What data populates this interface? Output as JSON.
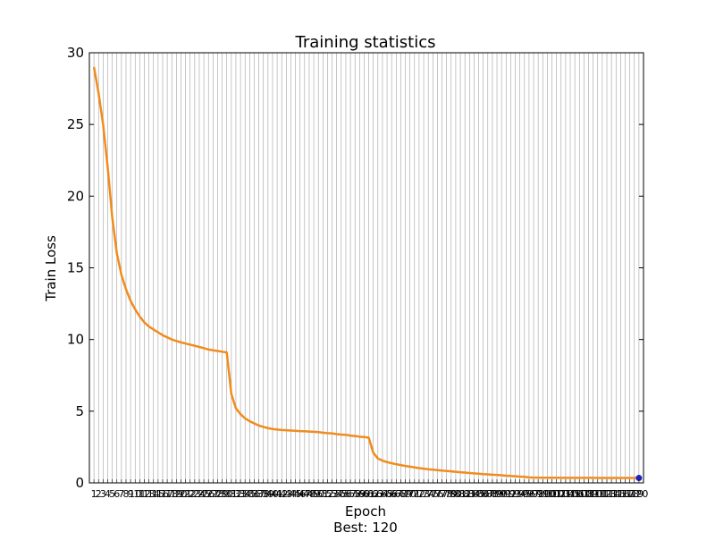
{
  "chart_data": {
    "type": "line",
    "title": "Training statistics",
    "xlabel": "Epoch",
    "xlabel_note": "Best: 120",
    "ylabel": "Train Loss",
    "ylim": [
      0,
      30
    ],
    "xlim": [
      0,
      121
    ],
    "yticks": [
      0,
      5,
      10,
      15,
      20,
      25,
      30
    ],
    "grid": "vertical lines at every epoch",
    "colors": {
      "line": "#f08c1e",
      "grid": "#a0a0a0",
      "best_marker": "#1f1fbf"
    },
    "series": [
      {
        "x": [
          1,
          2,
          3,
          4,
          5,
          6,
          7,
          8,
          9,
          10,
          11,
          12,
          13,
          14,
          15,
          16,
          17,
          18,
          19,
          20,
          21,
          22,
          23,
          24,
          25,
          26,
          27,
          28,
          29,
          30,
          31,
          32,
          33,
          34,
          35,
          36,
          37,
          38,
          39,
          40,
          41,
          42,
          43,
          44,
          45,
          46,
          47,
          48,
          49,
          50,
          51,
          52,
          53,
          54,
          55,
          56,
          57,
          58,
          59,
          60,
          61,
          62,
          63,
          64,
          65,
          66,
          67,
          68,
          69,
          70,
          71,
          72,
          73,
          74,
          75,
          76,
          77,
          78,
          79,
          80,
          81,
          82,
          83,
          84,
          85,
          86,
          87,
          88,
          89,
          90,
          91,
          92,
          93,
          94,
          95,
          96,
          97,
          98,
          99,
          100,
          101,
          102,
          103,
          104,
          105,
          106,
          107,
          108,
          109,
          110,
          111,
          112,
          113,
          114,
          115,
          116,
          117,
          118,
          119,
          120
        ],
        "values": [
          29.0,
          27.2,
          25.0,
          22.0,
          18.5,
          16.0,
          14.5,
          13.5,
          12.7,
          12.1,
          11.6,
          11.2,
          10.9,
          10.7,
          10.5,
          10.3,
          10.15,
          10.0,
          9.9,
          9.8,
          9.72,
          9.64,
          9.56,
          9.48,
          9.4,
          9.3,
          9.25,
          9.2,
          9.15,
          9.1,
          6.2,
          5.2,
          4.8,
          4.5,
          4.3,
          4.15,
          4.0,
          3.9,
          3.82,
          3.76,
          3.72,
          3.69,
          3.67,
          3.65,
          3.63,
          3.61,
          3.6,
          3.58,
          3.56,
          3.54,
          3.5,
          3.47,
          3.45,
          3.4,
          3.37,
          3.35,
          3.3,
          3.27,
          3.22,
          3.2,
          3.15,
          2.1,
          1.7,
          1.55,
          1.45,
          1.37,
          1.3,
          1.24,
          1.18,
          1.13,
          1.08,
          1.03,
          0.99,
          0.95,
          0.92,
          0.89,
          0.86,
          0.83,
          0.8,
          0.77,
          0.74,
          0.72,
          0.69,
          0.66,
          0.64,
          0.61,
          0.59,
          0.57,
          0.55,
          0.53,
          0.5,
          0.48,
          0.46,
          0.44,
          0.42,
          0.38,
          0.37,
          0.37,
          0.36,
          0.36,
          0.36,
          0.36,
          0.35,
          0.35,
          0.35,
          0.35,
          0.35,
          0.35,
          0.35,
          0.35,
          0.34,
          0.34,
          0.34,
          0.34,
          0.34,
          0.34,
          0.34,
          0.34,
          0.34,
          0.34
        ]
      }
    ],
    "best": {
      "x": 120,
      "y": 0.34
    }
  }
}
